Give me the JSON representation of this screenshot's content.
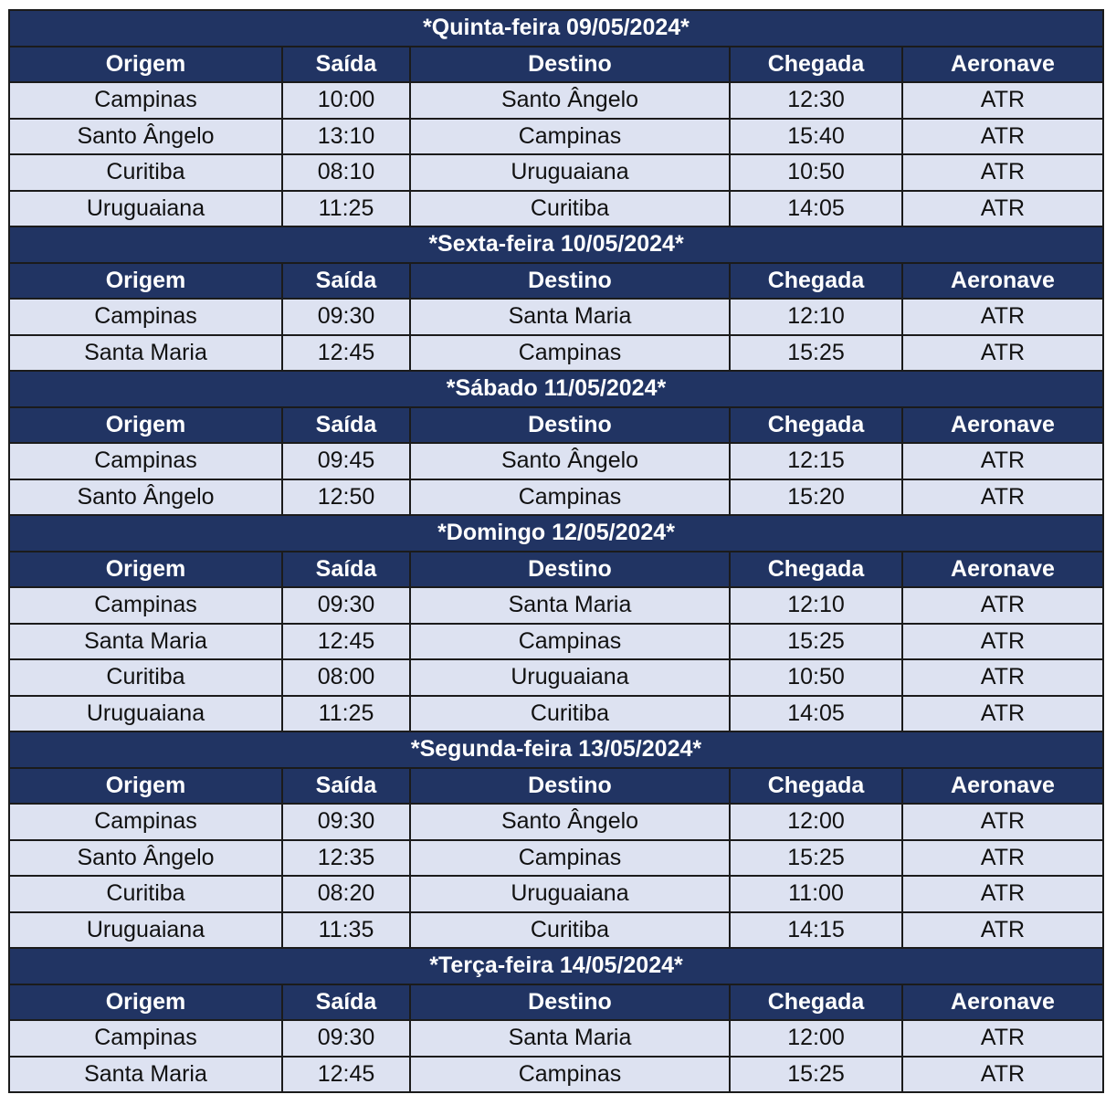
{
  "columns": [
    "Origem",
    "Saída",
    "Destino",
    "Chegada",
    "Aeronave"
  ],
  "days": [
    {
      "title": "*Quinta-feira 09/05/2024*",
      "flights": [
        [
          "Campinas",
          "10:00",
          "Santo Ângelo",
          "12:30",
          "ATR"
        ],
        [
          "Santo Ângelo",
          "13:10",
          "Campinas",
          "15:40",
          "ATR"
        ],
        [
          "Curitiba",
          "08:10",
          "Uruguaiana",
          "10:50",
          "ATR"
        ],
        [
          "Uruguaiana",
          "11:25",
          "Curitiba",
          "14:05",
          "ATR"
        ]
      ]
    },
    {
      "title": "*Sexta-feira 10/05/2024*",
      "flights": [
        [
          "Campinas",
          "09:30",
          "Santa Maria",
          "12:10",
          "ATR"
        ],
        [
          "Santa Maria",
          "12:45",
          "Campinas",
          "15:25",
          "ATR"
        ]
      ]
    },
    {
      "title": "*Sábado 11/05/2024*",
      "flights": [
        [
          "Campinas",
          "09:45",
          "Santo Ângelo",
          "12:15",
          "ATR"
        ],
        [
          "Santo Ângelo",
          "12:50",
          "Campinas",
          "15:20",
          "ATR"
        ]
      ]
    },
    {
      "title": "*Domingo 12/05/2024*",
      "flights": [
        [
          "Campinas",
          "09:30",
          "Santa Maria",
          "12:10",
          "ATR"
        ],
        [
          "Santa Maria",
          "12:45",
          "Campinas",
          "15:25",
          "ATR"
        ],
        [
          "Curitiba",
          "08:00",
          "Uruguaiana",
          "10:50",
          "ATR"
        ],
        [
          "Uruguaiana",
          "11:25",
          "Curitiba",
          "14:05",
          "ATR"
        ]
      ]
    },
    {
      "title": "*Segunda-feira 13/05/2024*",
      "flights": [
        [
          "Campinas",
          "09:30",
          "Santo Ângelo",
          "12:00",
          "ATR"
        ],
        [
          "Santo Ângelo",
          "12:35",
          "Campinas",
          "15:25",
          "ATR"
        ],
        [
          "Curitiba",
          "08:20",
          "Uruguaiana",
          "11:00",
          "ATR"
        ],
        [
          "Uruguaiana",
          "11:35",
          "Curitiba",
          "14:15",
          "ATR"
        ]
      ]
    },
    {
      "title": "*Terça-feira 14/05/2024*",
      "flights": [
        [
          "Campinas",
          "09:30",
          "Santa Maria",
          "12:00",
          "ATR"
        ],
        [
          "Santa Maria",
          "12:45",
          "Campinas",
          "15:25",
          "ATR"
        ]
      ]
    }
  ],
  "colors": {
    "header_bg": "#213463",
    "header_text": "#ffffff",
    "row_bg": "#dde2f1",
    "border": "#1b1b1b"
  }
}
